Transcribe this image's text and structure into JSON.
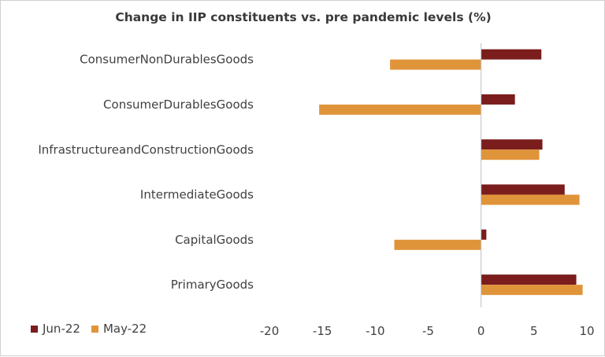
{
  "chart_data": {
    "type": "bar",
    "orientation": "horizontal",
    "title": "Change in IIP constituents vs. pre pandemic levels (%)",
    "categories": [
      "ConsumerNonDurablesGoods",
      "ConsumerDurablesGoods",
      "InfrastructureandConstructionGoods",
      "IntermediateGoods",
      "CapitalGoods",
      "PrimaryGoods"
    ],
    "series": [
      {
        "name": "Jun-22",
        "color": "#7b1d1d",
        "values": [
          5.7,
          3.2,
          5.8,
          7.9,
          0.5,
          9.0
        ]
      },
      {
        "name": "May-22",
        "color": "#e0943a",
        "values": [
          -8.6,
          -15.3,
          5.5,
          9.3,
          -8.2,
          9.6
        ]
      }
    ],
    "xlim": [
      -20,
      10
    ],
    "xticks": [
      "-20",
      "-15",
      "-10",
      "-5",
      "0",
      "5",
      "10"
    ],
    "xtick_values": [
      -20,
      -15,
      -10,
      -5,
      0,
      5,
      10
    ],
    "grid": false,
    "legend": "bottom-left"
  }
}
